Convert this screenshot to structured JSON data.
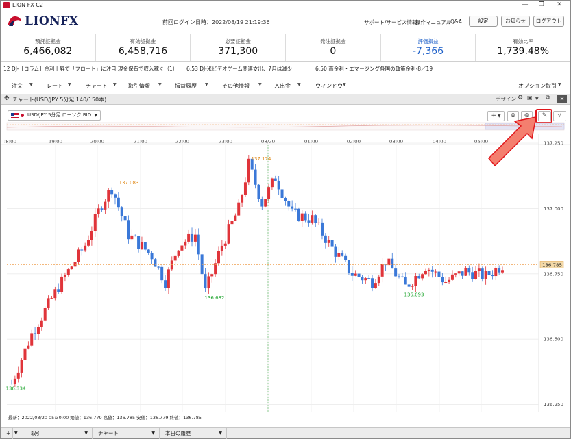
{
  "window": {
    "title": "LION FX C2",
    "minimize": "—",
    "restore": "❐",
    "close": "✕"
  },
  "header": {
    "logo_text": "LIONFX",
    "last_login": "前回ログイン日時：2022/08/19 21:19:36",
    "links": [
      "サポート/サービス情報",
      "操作マニュアル",
      "Q&A"
    ],
    "buttons": [
      "設定",
      "お知らせ",
      "ログアウト"
    ]
  },
  "summary": [
    {
      "label": "預託証拠金",
      "value": "6,466,082"
    },
    {
      "label": "有効証拠金",
      "value": "6,458,716"
    },
    {
      "label": "必要証拠金",
      "value": "371,300"
    },
    {
      "label": "発注証拠金",
      "value": "0"
    },
    {
      "label": "評価損益",
      "value": "-7,366"
    },
    {
      "label": "有効比率",
      "value": "1,739.48%"
    }
  ],
  "news": [
    "12  DJ-【コラム】金利上昇で「フロート」に注目  現金保有で収入稼ぐ（1）",
    "6:53  DJ-米ビデオゲーム関連支出、7月は減少",
    "6:50  高金利・エマージング各国の政策金利-8／19"
  ],
  "menu": [
    "注文",
    "レート",
    "チャート",
    "取引情報",
    "損益履歴",
    "その他情報",
    "入出金",
    "ウィンドウ"
  ],
  "menu_right": "オプション取引",
  "chart_window": {
    "title": "チャート(USD/JPY 5分足 140/150本)",
    "design_label": "デザイン"
  },
  "symbol": {
    "text": "USD/JPY 5分足 ローソク BID"
  },
  "toolbar_icons": {
    "crosshair": "+",
    "zoom_in": "⊕",
    "zoom_out": "⊖",
    "draw": "✎",
    "indicator": "√"
  },
  "chart_data": {
    "type": "candlestick",
    "x_ticks": [
      ":8:00",
      "19:00",
      "20:00",
      "21:00",
      "22:00",
      "23:00",
      "08/20",
      "01:00",
      "02:00",
      "03:00",
      "04:00",
      "05:00"
    ],
    "y_ticks": [
      "137.250",
      "137.000",
      "136.750",
      "136.500",
      "136.250"
    ],
    "ylim": [
      136.22,
      137.3
    ],
    "current_price": "136.785",
    "annotations": {
      "high1": "137.083",
      "high2": "137.174",
      "low1": "136.334",
      "low2": "136.682",
      "low3": "136.693"
    },
    "colors": {
      "up": "#e0343a",
      "down": "#3a78d8",
      "high_label": "#e08a1a",
      "low_label": "#1aa32a"
    }
  },
  "info_line": "最新：2022/08/20 05:30:00  始値：136.779  高値：136.785  安値：136.779  終値：136.785",
  "bottom_tabs": [
    "取引",
    "チャート",
    "本日の履歴"
  ],
  "bottom_add": "+"
}
